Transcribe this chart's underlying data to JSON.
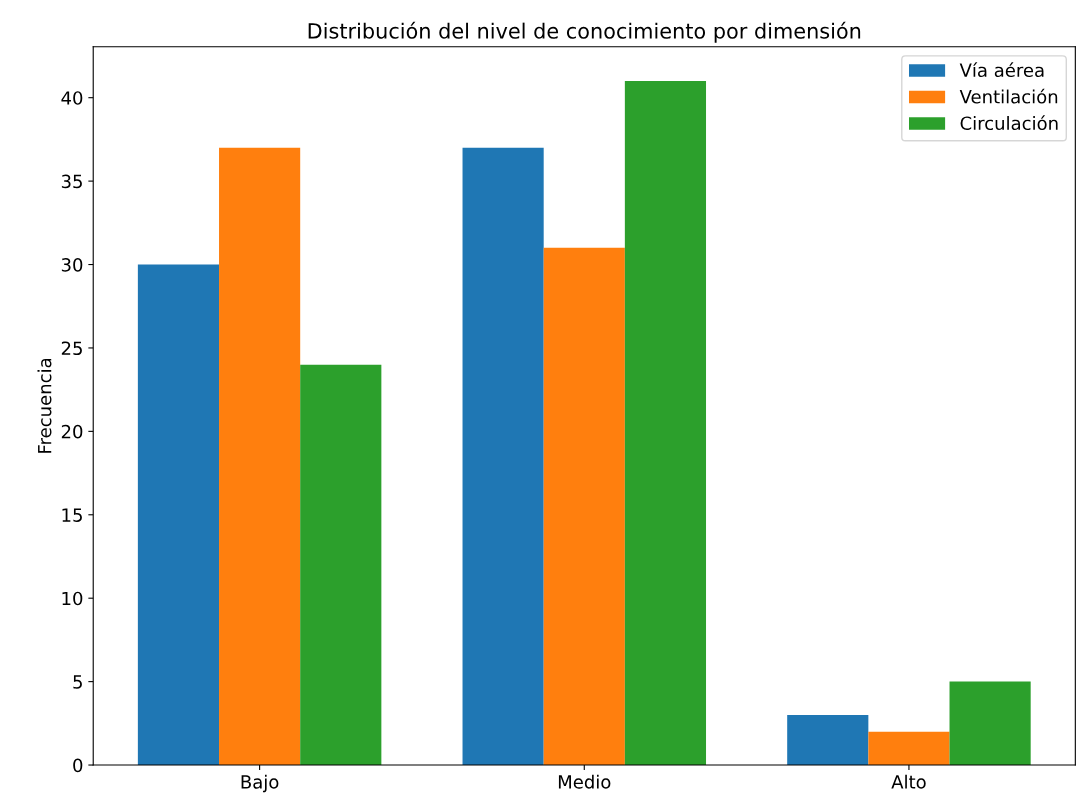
{
  "chart_data": {
    "type": "bar",
    "title": "Distribución del nivel de conocimiento por dimensión",
    "ylabel": "Frecuencia",
    "categories": [
      "Bajo",
      "Medio",
      "Alto"
    ],
    "series": [
      {
        "name": "Vía aérea",
        "color": "#1f77b4",
        "values": [
          30,
          37,
          3
        ]
      },
      {
        "name": "Ventilación",
        "color": "#ff7f0e",
        "values": [
          37,
          31,
          2
        ]
      },
      {
        "name": "Circulación",
        "color": "#2ca02c",
        "values": [
          24,
          41,
          5
        ]
      }
    ],
    "ylim": [
      0,
      43.05
    ],
    "yticks": [
      0,
      5,
      10,
      15,
      20,
      25,
      30,
      35,
      40
    ],
    "grid": false,
    "legend": "top right"
  }
}
